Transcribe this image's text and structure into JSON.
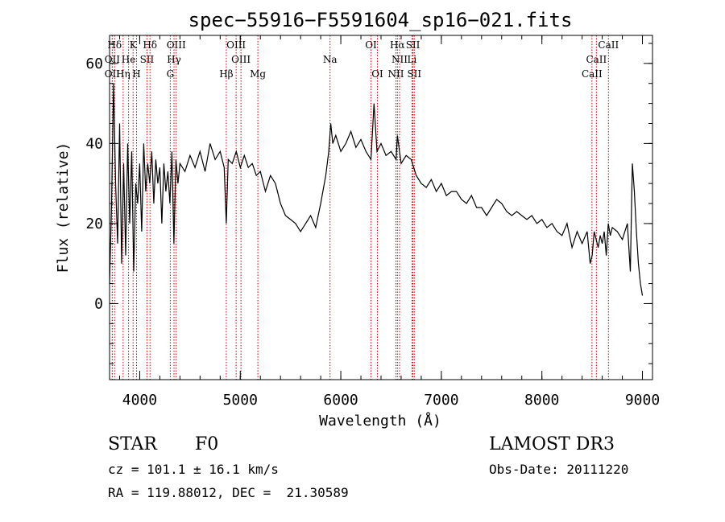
{
  "chart_data": {
    "type": "line",
    "title": "spec−55916−F5591604_sp16−021.fits",
    "xlabel": "Wavelength (Å)",
    "ylabel": "Flux (relative)",
    "xlim": [
      3700,
      9100
    ],
    "ylim": [
      -19,
      67
    ],
    "xticks": [
      4000,
      5000,
      6000,
      7000,
      8000,
      9000
    ],
    "xtick_labels": [
      "4000",
      "5000",
      "6000",
      "7000",
      "8000",
      "9000"
    ],
    "yticks": [
      0,
      20,
      40,
      60
    ],
    "ytick_labels": [
      "0",
      "20",
      "40",
      "60"
    ],
    "xminor_step": 200,
    "yminor_step": 5,
    "series": [
      {
        "name": "flux",
        "x": [
          3700,
          3720,
          3740,
          3760,
          3780,
          3800,
          3820,
          3840,
          3860,
          3880,
          3900,
          3920,
          3940,
          3960,
          3980,
          4000,
          4020,
          4040,
          4060,
          4080,
          4100,
          4120,
          4140,
          4160,
          4180,
          4200,
          4220,
          4240,
          4260,
          4280,
          4300,
          4320,
          4340,
          4360,
          4380,
          4400,
          4450,
          4500,
          4550,
          4600,
          4650,
          4700,
          4750,
          4800,
          4840,
          4861,
          4880,
          4920,
          4960,
          5000,
          5040,
          5080,
          5120,
          5160,
          5200,
          5250,
          5300,
          5350,
          5400,
          5450,
          5500,
          5550,
          5600,
          5650,
          5700,
          5750,
          5800,
          5850,
          5880,
          5900,
          5920,
          5950,
          6000,
          6050,
          6100,
          6150,
          6200,
          6250,
          6300,
          6330,
          6360,
          6400,
          6450,
          6500,
          6550,
          6563,
          6600,
          6650,
          6700,
          6750,
          6800,
          6850,
          6900,
          6950,
          7000,
          7050,
          7100,
          7150,
          7200,
          7250,
          7300,
          7350,
          7400,
          7450,
          7500,
          7550,
          7600,
          7650,
          7700,
          7750,
          7800,
          7850,
          7900,
          7950,
          8000,
          8050,
          8100,
          8150,
          8200,
          8250,
          8300,
          8350,
          8400,
          8450,
          8480,
          8500,
          8520,
          8540,
          8560,
          8580,
          8600,
          8620,
          8640,
          8660,
          8680,
          8700,
          8750,
          8800,
          8850,
          8880,
          8900,
          8920,
          8940,
          8960,
          8980,
          9000
        ],
        "y": [
          5,
          25,
          55,
          30,
          15,
          45,
          10,
          35,
          12,
          40,
          20,
          38,
          8,
          30,
          25,
          35,
          18,
          40,
          28,
          35,
          30,
          38,
          25,
          36,
          30,
          34,
          20,
          35,
          28,
          33,
          25,
          38,
          15,
          36,
          30,
          35,
          33,
          37,
          34,
          38,
          33,
          40,
          36,
          38,
          34,
          20,
          36,
          35,
          38,
          34,
          37,
          34,
          35,
          32,
          33,
          28,
          32,
          30,
          25,
          22,
          21,
          20,
          18,
          20,
          22,
          19,
          25,
          32,
          38,
          45,
          40,
          42,
          38,
          40,
          43,
          39,
          41,
          38,
          36,
          50,
          38,
          40,
          37,
          38,
          36,
          42,
          35,
          37,
          36,
          32,
          30,
          29,
          31,
          28,
          30,
          27,
          28,
          28,
          26,
          25,
          27,
          24,
          24,
          22,
          24,
          26,
          25,
          23,
          22,
          23,
          22,
          21,
          22,
          20,
          21,
          19,
          20,
          18,
          17,
          20,
          14,
          18,
          15,
          18,
          10,
          12,
          18,
          16,
          14,
          17,
          15,
          18,
          12,
          20,
          17,
          19,
          18,
          16,
          20,
          8,
          35,
          28,
          18,
          10,
          5,
          2
        ]
      }
    ],
    "emission_lines": [
      {
        "label": "Hδ",
        "wave": 3750,
        "row": 1
      },
      {
        "label": "K",
        "wave": 3934,
        "row": 1
      },
      {
        "label": "Hδ",
        "wave": 4102,
        "row": 1
      },
      {
        "label": "OIII",
        "wave": 4363,
        "row": 1
      },
      {
        "label": "OIII",
        "wave": 4959,
        "row": 1
      },
      {
        "label": "OI",
        "wave": 6300,
        "row": 1
      },
      {
        "label": "Hα",
        "wave": 6563,
        "row": 1
      },
      {
        "label": "SII",
        "wave": 6717,
        "row": 1
      },
      {
        "label": "CaII",
        "wave": 8662,
        "row": 1
      },
      {
        "label": "OII",
        "wave": 3727,
        "row": 2
      },
      {
        "label": "He",
        "wave": 3889,
        "row": 2
      },
      {
        "label": "SII",
        "wave": 4072,
        "row": 2
      },
      {
        "label": "Hγ",
        "wave": 4341,
        "row": 2
      },
      {
        "label": "OIII",
        "wave": 5007,
        "row": 2
      },
      {
        "label": "Na",
        "wave": 5893,
        "row": 2
      },
      {
        "label": "NII",
        "wave": 6584,
        "row": 2
      },
      {
        "label": "Li",
        "wave": 6708,
        "row": 2
      },
      {
        "label": "CaII",
        "wave": 8542,
        "row": 2
      },
      {
        "label": "OII",
        "wave": 3727,
        "row": 3
      },
      {
        "label": "Hη",
        "wave": 3835,
        "row": 3
      },
      {
        "label": "H",
        "wave": 3968,
        "row": 3
      },
      {
        "label": "G",
        "wave": 4304,
        "row": 3
      },
      {
        "label": "Hβ",
        "wave": 4861,
        "row": 3
      },
      {
        "label": "Mg",
        "wave": 5175,
        "row": 3
      },
      {
        "label": "OI",
        "wave": 6364,
        "row": 3
      },
      {
        "label": "NII",
        "wave": 6548,
        "row": 3
      },
      {
        "label": "SII",
        "wave": 6731,
        "row": 3
      },
      {
        "label": "CaII",
        "wave": 8498,
        "row": 3
      }
    ],
    "line_color": "#000000",
    "marker_color": "#cc0000"
  },
  "info": {
    "class": "STAR",
    "subclass": "F0",
    "survey": "LAMOST DR3",
    "redshift": "cz = 101.1 ± 16.1 km/s",
    "obs_date": "Obs-Date: 20111220",
    "coords": "RA = 119.88012, DEC =  21.30589"
  }
}
